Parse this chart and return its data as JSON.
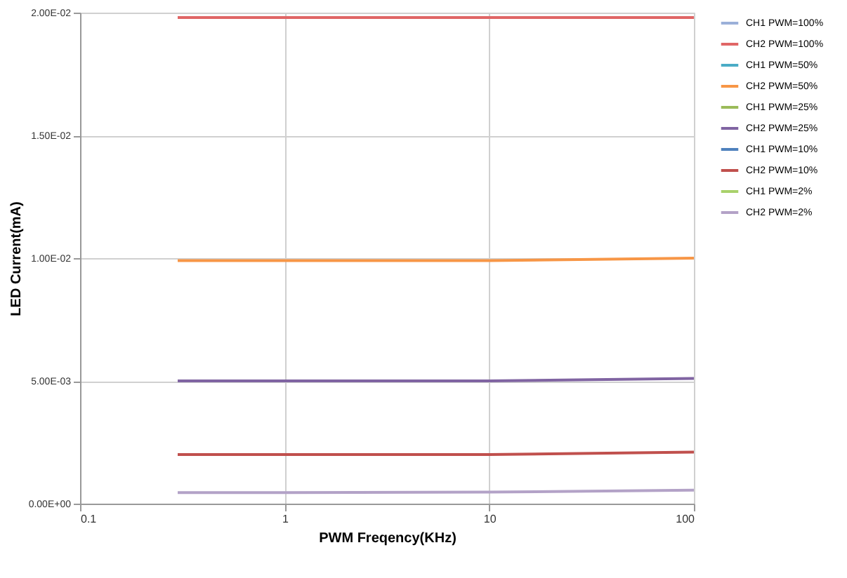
{
  "chart_data": {
    "type": "line",
    "xlabel": "PWM Freqency(KHz)",
    "ylabel": "LED Current(mA)",
    "x": [
      0.3,
      1,
      10,
      100
    ],
    "log": "x",
    "xlim": [
      0.1,
      100
    ],
    "xticks": [
      0.1,
      1,
      10,
      100
    ],
    "ylim": [
      0,
      0.02
    ],
    "yticks": [
      {
        "value": 0,
        "label": "0.00E+00"
      },
      {
        "value": 0.005,
        "label": "5.00E-03"
      },
      {
        "value": 0.01,
        "label": "1.00E-02"
      },
      {
        "value": 0.015,
        "label": "1.50E-02"
      },
      {
        "value": 0.02,
        "label": "2.00E-02"
      }
    ],
    "grid": true,
    "legend": "right",
    "marker": "none",
    "line_style": "solid",
    "series": [
      {
        "name": "CH1 PWM=100%",
        "color": "#9bb0d9",
        "values": [
          null,
          null,
          null,
          null
        ]
      },
      {
        "name": "CH2 PWM=100%",
        "color": "#e06666",
        "values": [
          0.0198,
          0.0198,
          0.0198,
          0.0198
        ]
      },
      {
        "name": "CH1 PWM=50%",
        "color": "#4bacc6",
        "values": [
          null,
          null,
          null,
          null
        ]
      },
      {
        "name": "CH2 PWM=50%",
        "color": "#f79646",
        "values": [
          0.0099,
          0.0099,
          0.0099,
          0.01
        ]
      },
      {
        "name": "CH1 PWM=25%",
        "color": "#9bbb59",
        "values": [
          null,
          null,
          null,
          null
        ]
      },
      {
        "name": "CH2 PWM=25%",
        "color": "#8064a2",
        "values": [
          0.005,
          0.005,
          0.005,
          0.0051
        ]
      },
      {
        "name": "CH1 PWM=10%",
        "color": "#4f81bd",
        "values": [
          null,
          null,
          null,
          null
        ]
      },
      {
        "name": "CH2 PWM=10%",
        "color": "#c0504d",
        "values": [
          0.002,
          0.002,
          0.002,
          0.0021
        ]
      },
      {
        "name": "CH1 PWM=2%",
        "color": "#a9d16b",
        "values": [
          null,
          null,
          null,
          null
        ]
      },
      {
        "name": "CH2 PWM=2%",
        "color": "#b3a2c7",
        "values": [
          0.00045,
          0.00045,
          0.00047,
          0.00055
        ]
      }
    ]
  }
}
